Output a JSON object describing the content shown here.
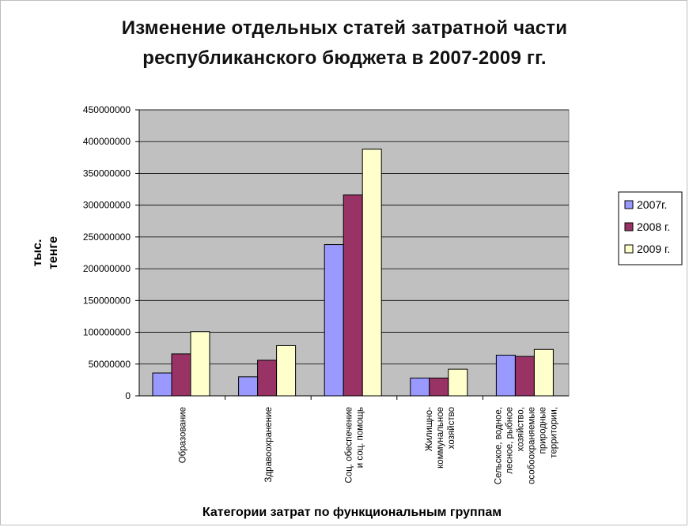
{
  "chart_data": {
    "type": "bar",
    "title": [
      "Изменение отдельных статей затратной части",
      "республиканского бюджета в 2007-2009 гг."
    ],
    "ylabel": [
      "тыс.",
      "тенге"
    ],
    "xlabel": "Категории затрат по функциональным группам",
    "ylim": [
      0,
      450000000
    ],
    "yticks": [
      "450000000",
      "400000000",
      "350000000",
      "300000000",
      "250000000",
      "200000000",
      "150000000",
      "100000000",
      "50000000",
      "0"
    ],
    "ytick_values": [
      450000000,
      400000000,
      350000000,
      300000000,
      250000000,
      200000000,
      150000000,
      100000000,
      50000000,
      0
    ],
    "grid": true,
    "legend_position": "right",
    "categories": [
      [
        "Образование"
      ],
      [
        "Здравоохранение"
      ],
      [
        "Соц. обеспечение",
        "и соц. помощь"
      ],
      [
        "Жилищно-",
        "коммунальное",
        "хозяйство"
      ],
      [
        "Сельское, водное,",
        "лесное, рыбное",
        "хозяйство,",
        "особоохраняемые",
        "природные",
        "территории,"
      ]
    ],
    "series": [
      {
        "name": "2007г.",
        "color": "#9999ff",
        "values": [
          36000000,
          30000000,
          238000000,
          28000000,
          64000000
        ]
      },
      {
        "name": "2008 г.",
        "color": "#993366",
        "values": [
          66000000,
          56000000,
          316000000,
          28000000,
          62000000
        ]
      },
      {
        "name": "2009 г.",
        "color": "#ffffcc",
        "values": [
          101000000,
          79000000,
          388000000,
          42000000,
          73000000
        ]
      }
    ],
    "plot_bg": "#c0c0c0"
  }
}
